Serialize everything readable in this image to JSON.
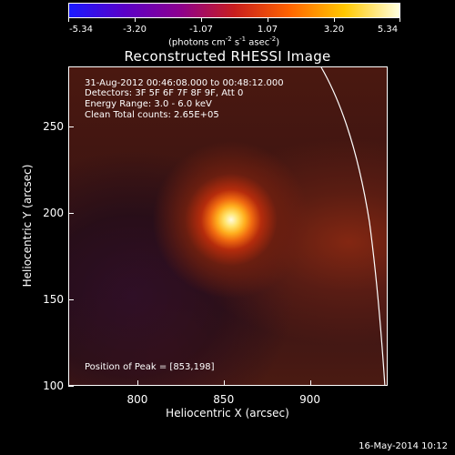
{
  "colorbar": {
    "tick_labels": [
      "-5.34",
      "-3.20",
      "-1.07",
      "1.07",
      "3.20",
      "5.34"
    ],
    "unit_text": "(photons cm",
    "unit_sup1": "-2",
    "unit_mid1": " s",
    "unit_sup2": "-1",
    "unit_mid2": " asec",
    "unit_sup3": "-2",
    "unit_end": ")",
    "colors": [
      "#1a1aff",
      "#5a00c8",
      "#8c0090",
      "#c81e1e",
      "#ff6400",
      "#ffc800",
      "#ffffe0"
    ]
  },
  "title": "Reconstructed RHESSI Image",
  "info": {
    "line1": "31-Aug-2012 00:46:08.000 to 00:48:12.000",
    "line2": "Detectors: 3F 5F 6F 7F 8F 9F, Att 0",
    "line3": "Energy Range: 3.0 - 6.0 keV",
    "line4": "Clean    Total counts: 2.65E+05",
    "peak": "Position of Peak = [853,198]"
  },
  "chart_data": {
    "type": "heatmap",
    "xlabel": "Heliocentric X (arcsec)",
    "ylabel": "Heliocentric Y (arcsec)",
    "xlim": [
      760,
      945
    ],
    "ylim": [
      100,
      285
    ],
    "xticks": [
      "800",
      "850",
      "900"
    ],
    "yticks": [
      "100",
      "150",
      "200",
      "250"
    ],
    "peak": [
      853,
      198
    ],
    "colorbar_range": [
      -5.34,
      5.34
    ]
  },
  "footer": "16-May-2014 10:12"
}
